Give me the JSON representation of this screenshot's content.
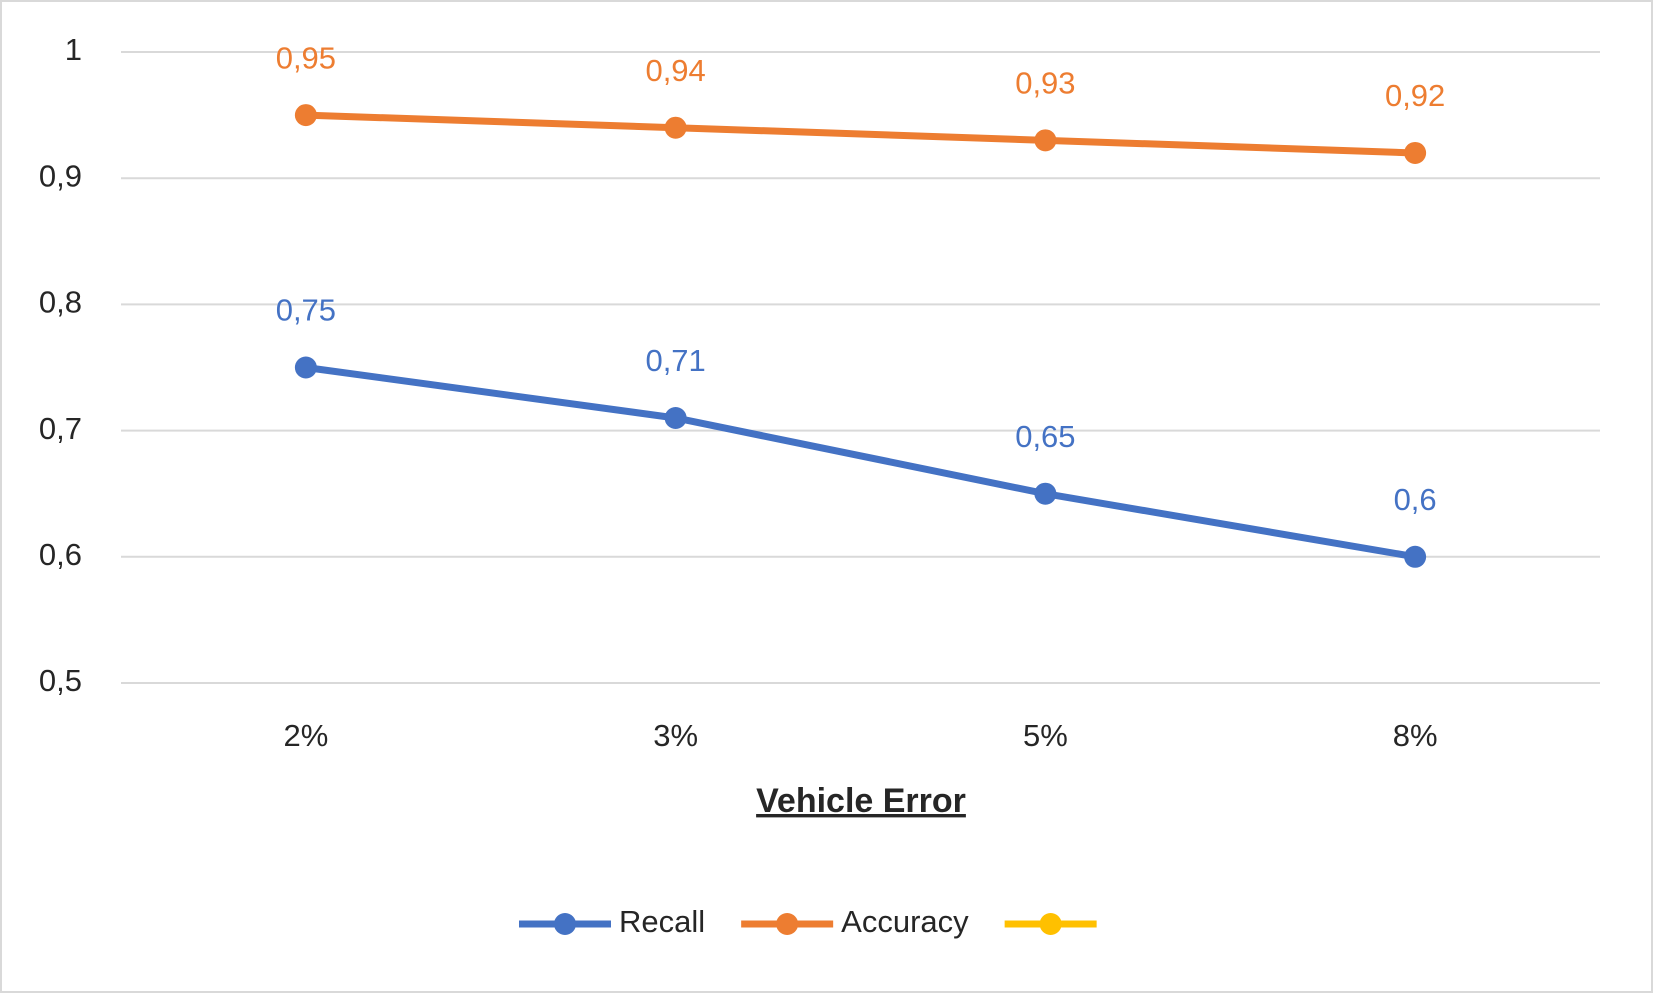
{
  "chart_data": {
    "type": "line",
    "x_label": "Vehicle Error",
    "categories": [
      "2%",
      "3%",
      "5%",
      "8%"
    ],
    "series": [
      {
        "name": "Recall",
        "color": "#4472c4",
        "values": [
          0.75,
          0.71,
          0.65,
          0.6
        ],
        "value_labels": [
          "0,75",
          "0,71",
          "0,65",
          "0,6"
        ]
      },
      {
        "name": "Accuracy",
        "color": "#ed7d31",
        "values": [
          0.95,
          0.94,
          0.93,
          0.92
        ],
        "value_labels": [
          "0,95",
          "0,94",
          "0,93",
          "0,92"
        ]
      },
      {
        "color": "#ffc000",
        "values": [
          null,
          null,
          null,
          null
        ]
      }
    ],
    "ylim": [
      0.5,
      1
    ],
    "yticks": [
      {
        "value": 0.5,
        "label": "0,5"
      },
      {
        "value": 0.6,
        "label": "0,6"
      },
      {
        "value": 0.7,
        "label": "0,7"
      },
      {
        "value": 0.8,
        "label": "0,8"
      },
      {
        "value": 0.9,
        "label": "0,9"
      },
      1
    ],
    "grid": true,
    "legend": "bottom"
  }
}
